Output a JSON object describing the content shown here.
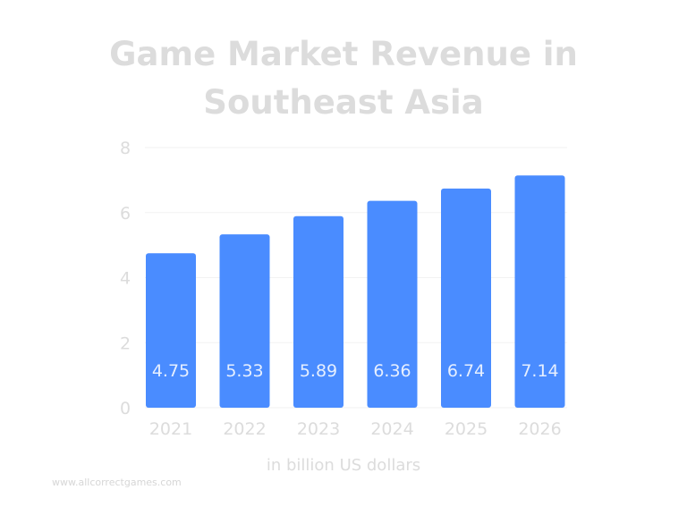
{
  "chart_data": {
    "type": "bar",
    "title": "Game Market Revenue in Southeast Asia",
    "title_lines": [
      "Game Market Revenue in",
      "Southeast Asia"
    ],
    "categories": [
      "2021",
      "2022",
      "2023",
      "2024",
      "2025",
      "2026"
    ],
    "values": [
      4.75,
      5.33,
      5.89,
      6.36,
      6.74,
      7.14
    ],
    "data_labels": [
      "4.75",
      "5.33",
      "5.89",
      "6.36",
      "6.74",
      "7.14"
    ],
    "xlabel": "in billion US dollars",
    "ylabel": "",
    "ylim": [
      0,
      8
    ],
    "yticks": [
      "0",
      "2",
      "4",
      "6",
      "8"
    ],
    "grid": true,
    "bar_color": "#4a8cff",
    "text_color": "#dcdcdc"
  },
  "watermark": "www.allcorrectgames.com"
}
